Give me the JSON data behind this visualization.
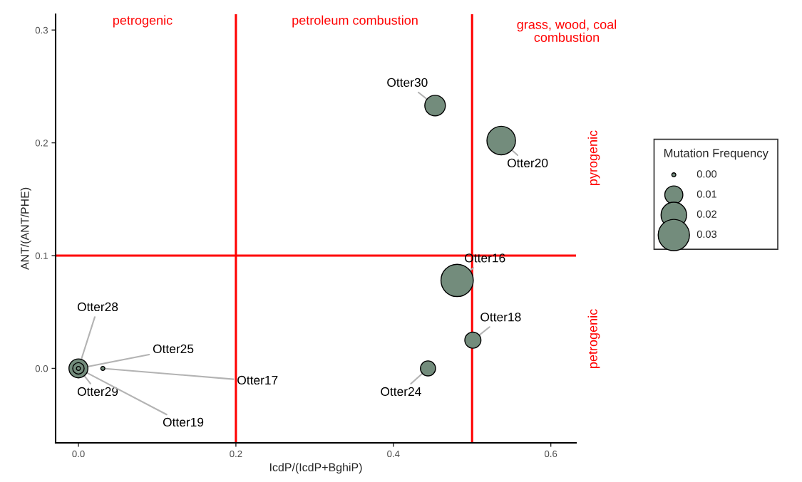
{
  "chart_data": {
    "type": "bubble",
    "xlabel": "IcdP/(IcdP+BghiP)",
    "ylabel": "ANT/(ANT/PHE)",
    "legend_title": "Mutation Frequency",
    "x": [
      0.453,
      0.537,
      0.481,
      0.501,
      0.444,
      0.0,
      0.0,
      0.0,
      0.031
    ],
    "values": [
      0.233,
      0.202,
      0.078,
      0.025,
      0.0,
      0.0,
      0.0,
      0.0,
      0.0
    ],
    "sizes": [
      0.013,
      0.025,
      0.032,
      0.008,
      0.007,
      0.004,
      0.011,
      0.0005,
      0.0005
    ],
    "size_legend": [
      {
        "value": 0.0005,
        "label": "0.00"
      },
      {
        "value": 0.01,
        "label": "0.01"
      },
      {
        "value": 0.02,
        "label": "0.02"
      },
      {
        "value": 0.03,
        "label": "0.03"
      }
    ],
    "color": "#738c7c",
    "xlim": [
      -0.029,
      0.632
    ],
    "ylim": [
      -0.066,
      0.314
    ],
    "xticks": [
      {
        "value": 0,
        "label": "0.0"
      },
      {
        "value": 0.2,
        "label": "0.2"
      },
      {
        "value": 0.4,
        "label": "0.4"
      },
      {
        "value": 0.6,
        "label": "0.6"
      }
    ],
    "yticks": [
      {
        "value": 0,
        "label": "0.0"
      },
      {
        "value": 0.1,
        "label": "0.1"
      },
      {
        "value": 0.2,
        "label": "0.2"
      },
      {
        "value": 0.3,
        "label": "0.3"
      }
    ],
    "ref_lines": [
      {
        "axis": "x",
        "value": 0.2,
        "color": "#ff0000"
      },
      {
        "axis": "x",
        "value": 0.5,
        "color": "#ff0000"
      },
      {
        "axis": "y",
        "value": 0.1,
        "color": "#ff0000"
      }
    ],
    "annotations": [
      {
        "text": "Otter30",
        "x": 0.453,
        "y": 0.233
      },
      {
        "text": "Otter20",
        "x": 0.537,
        "y": 0.202
      },
      {
        "text": "Otter16",
        "x": 0.481,
        "y": 0.078
      },
      {
        "text": "Otter18",
        "x": 0.501,
        "y": 0.025
      },
      {
        "text": "Otter24",
        "x": 0.444,
        "y": 0.0
      },
      {
        "text": "Otter28",
        "x": 0.0,
        "y": 0.0
      },
      {
        "text": "Otter25",
        "x": 0.0,
        "y": 0.0
      },
      {
        "text": "Otter29",
        "x": 0.0,
        "y": 0.0
      },
      {
        "text": "Otter19",
        "x": 0.0,
        "y": 0.0
      },
      {
        "text": "Otter17",
        "x": 0.031,
        "y": 0.0
      },
      "petrogenic",
      "petroleum combustion",
      "grass, wood, coal\ncombustion",
      "pyrogenic",
      "petrogenic"
    ],
    "grid": false
  }
}
